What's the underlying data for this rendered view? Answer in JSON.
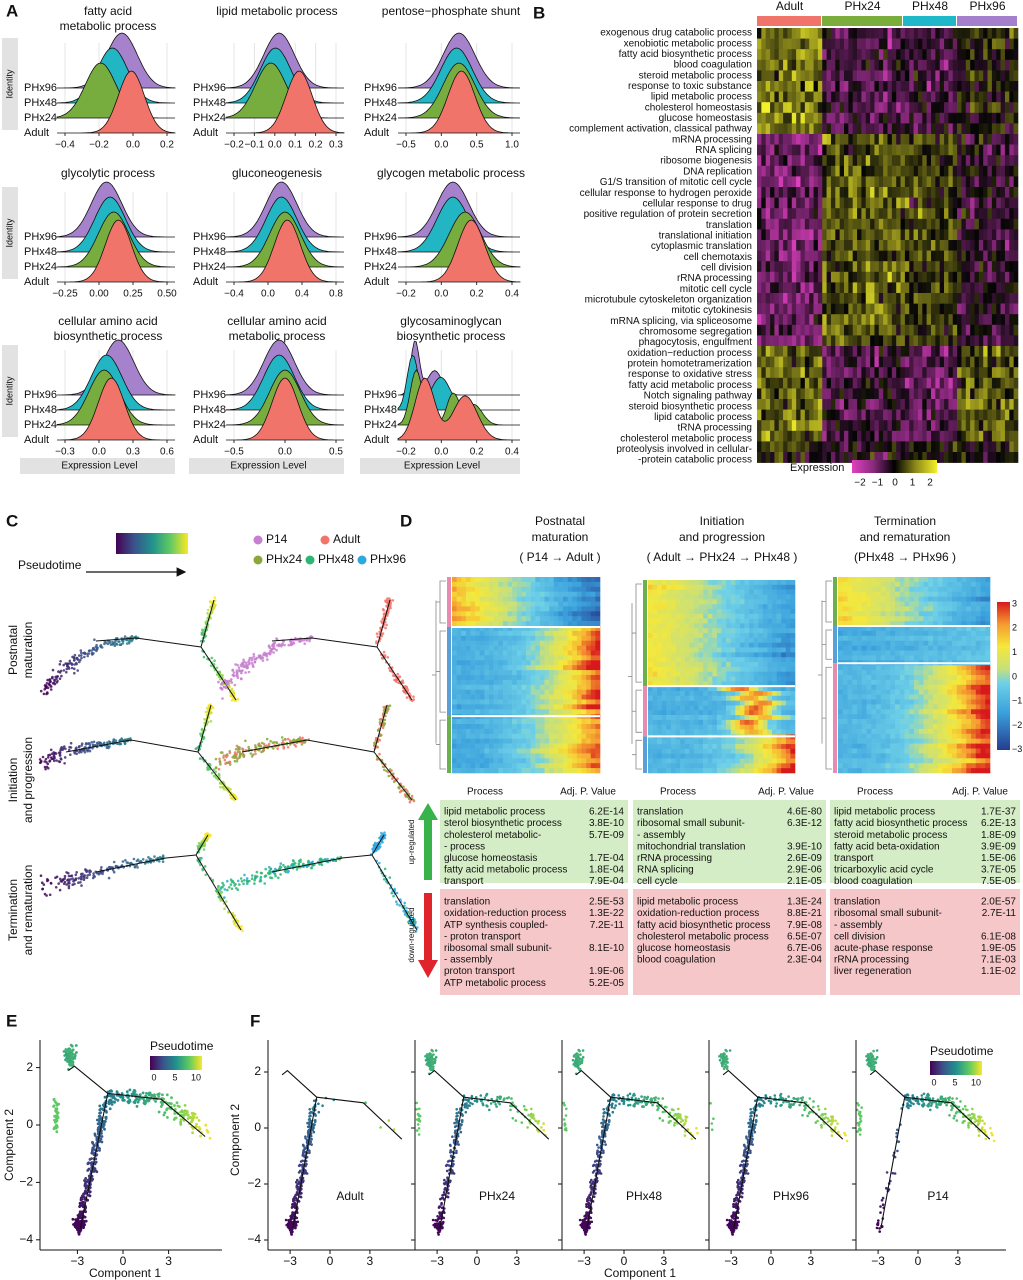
{
  "A": {
    "label": "A",
    "ylabel": "Identity",
    "groups": [
      "PHx96",
      "PHx48",
      "PHx24",
      "Adult"
    ],
    "xlabel": "Expression Level",
    "plots": [
      {
        "title": [
          "fatty acid",
          "metabolic process"
        ],
        "ticks": [
          "−0.4",
          "−0.2",
          "0.0",
          "0.2"
        ]
      },
      {
        "title": [
          "lipid metabolic process"
        ],
        "ticks": [
          "−0.2",
          "−0.1",
          "0.0",
          "0.1",
          "0.2",
          "0.3"
        ]
      },
      {
        "title": [
          "pentose−phosphate shunt"
        ],
        "ticks": [
          "−0.5",
          "0.0",
          "0.5",
          "1.0"
        ]
      },
      {
        "title": [
          "glycolytic process"
        ],
        "ticks": [
          "−0.25",
          "0.00",
          "0.25",
          "0.50"
        ]
      },
      {
        "title": [
          "gluconeogenesis"
        ],
        "ticks": [
          "−0.4",
          "0.0",
          "0.4",
          "0.8"
        ]
      },
      {
        "title": [
          "glycogen metabolic process"
        ],
        "ticks": [
          "−0.2",
          "0.0",
          "0.2",
          "0.4"
        ]
      },
      {
        "title": [
          "cellular amino acid",
          "biosynthetic process"
        ],
        "ticks": [
          "−0.3",
          "0.0",
          "0.3",
          "0.6"
        ]
      },
      {
        "title": [
          "cellular amino acid",
          "metabolic process"
        ],
        "ticks": [
          "−0.5",
          "0.0",
          "0.5"
        ]
      },
      {
        "title": [
          "glycosaminoglycan",
          "biosynthetic process"
        ],
        "ticks": [
          "−0.2",
          "0.0",
          "0.2",
          "0.4"
        ]
      }
    ]
  },
  "B": {
    "label": "B",
    "groups": [
      "Adult",
      "PHx24",
      "PHx48",
      "PHx96"
    ],
    "processes": [
      "exogenous drug catabolic process",
      "xenobiotic metabolic process",
      "fatty acid biosynthetic process",
      "blood coagulation",
      "steroid metabolic process",
      "response to toxic substance",
      "lipid metabolic process",
      "cholesterol homeostasis",
      "glucose homeostasis",
      "complement activation, classical pathway",
      "mRNA processing",
      "RNA splicing",
      "ribosome biogenesis",
      "DNA replication",
      "G1/S transition of mitotic cell cycle",
      "cellular response to hydrogen peroxide",
      "cellular response to drug",
      "positive regulation of protein secretion",
      "translation",
      "translational initiation",
      "cytoplasmic translation",
      "cell chemotaxis",
      "cell division",
      "rRNA processing",
      "mitotic cell cycle",
      "microtubule cytoskeleton organization",
      "mitotic cytokinesis",
      "mRNA splicing, via spliceosome",
      "chromosome segregation",
      "phagocytosis, engulfment",
      "oxidation−reduction process",
      "protein homotetramerization",
      "response to oxidative stress",
      "fatty acid metabolic process",
      "Notch signaling pathway",
      "steroid biosynthetic process",
      "lipid catabolic process",
      "tRNA processing",
      "cholesterol metabolic process",
      "proteolysis involved in cellular-",
      "-protein catabolic process"
    ],
    "legend_title": "Expression",
    "legend_ticks": [
      "−2",
      "−1",
      "0",
      "1",
      "2"
    ]
  },
  "C": {
    "label": "C",
    "pseudotime": "Pseudotime",
    "legend": [
      "P14",
      "Adult",
      "PHx24",
      "PHx48",
      "PHx96"
    ],
    "rows": [
      [
        "Postnatal",
        "maturation"
      ],
      [
        "Initiation",
        "and progression"
      ],
      [
        "Termination",
        "and rematuration"
      ]
    ]
  },
  "D": {
    "label": "D",
    "process_header": "Process",
    "p_header": "Adj. P. Value",
    "up_label": "up-regulated",
    "down_label": "down-regulated",
    "colorbar_ticks": [
      "3",
      "2",
      "1",
      "0",
      "−1",
      "−2",
      "−3"
    ],
    "columns": [
      {
        "title": [
          "Postnatal",
          "maturation"
        ],
        "subtitle": "( P14 → Adult )",
        "up": [
          [
            "lipid metabolic process",
            "6.2E-14"
          ],
          [
            "sterol biosynthetic process",
            "3.8E-10"
          ],
          [
            "cholesterol metabolic-",
            "5.7E-09"
          ],
          [
            "- process"
          ],
          [
            "glucose homeostasis",
            "1.7E-04"
          ],
          [
            "fatty acid metabolic process",
            "1.8E-04"
          ],
          [
            "transport",
            "7.9E-04"
          ]
        ],
        "down": [
          [
            "translation",
            "2.5E-53"
          ],
          [
            "oxidation-reduction process",
            "1.3E-22"
          ],
          [
            "ATP synthesis coupled-",
            "7.2E-11"
          ],
          [
            "- proton transport"
          ],
          [
            "ribosomal small subunit-",
            "8.1E-10"
          ],
          [
            "- assembly"
          ],
          [
            "proton transport",
            "1.9E-06"
          ],
          [
            "ATP metabolic process",
            "5.2E-05"
          ]
        ]
      },
      {
        "title": [
          "Initiation",
          "and progression"
        ],
        "subtitle": "( Adult → PHx24 → PHx48 )",
        "up": [
          [
            "translation",
            "4.6E-80"
          ],
          [
            "ribosomal small subunit-",
            "6.3E-12"
          ],
          [
            "- assembly"
          ],
          [
            "mitochondrial translation",
            "3.9E-10"
          ],
          [
            "rRNA processing",
            "2.6E-09"
          ],
          [
            "RNA splicing",
            "2.9E-06"
          ],
          [
            "cell cycle",
            "2.1E-05"
          ]
        ],
        "down": [
          [
            "lipid metabolic process",
            "1.3E-24"
          ],
          [
            "oxidation-reduction process",
            "8.8E-21"
          ],
          [
            "fatty acid biosynthetic process",
            "7.9E-08"
          ],
          [
            "cholesterol metabolic process",
            "6.5E-07"
          ],
          [
            "glucose homeostasis",
            "6.7E-06"
          ],
          [
            "blood coagulation",
            "2.3E-04"
          ]
        ]
      },
      {
        "title": [
          "Termination",
          "and rematuration"
        ],
        "subtitle": "(PHx48 → PHx96 )",
        "up": [
          [
            "lipid metabolic process",
            "1.7E-37"
          ],
          [
            "fatty acid biosynthetic process",
            "6.2E-13"
          ],
          [
            "steroid metabolic process",
            "1.8E-09"
          ],
          [
            "fatty acid beta-oxidation",
            "3.9E-09"
          ],
          [
            "transport",
            "1.5E-06"
          ],
          [
            "tricarboxylic acid cycle",
            "3.7E-05"
          ],
          [
            "blood coagulation",
            "7.5E-05"
          ]
        ],
        "down": [
          [
            "translation",
            "2.0E-57"
          ],
          [
            "ribosomal small subunit-",
            "2.7E-11"
          ],
          [
            "- assembly"
          ],
          [
            "cell division",
            "6.1E-08"
          ],
          [
            "acute-phase response",
            "1.9E-05"
          ],
          [
            "rRNA processing",
            "7.1E-03"
          ],
          [
            "liver regeneration",
            "1.1E-02"
          ]
        ]
      }
    ]
  },
  "E": {
    "label": "E",
    "legend_title": "Pseudotime",
    "legend_ticks": [
      "0",
      "5",
      "10"
    ],
    "xticks": [
      "−3",
      "0",
      "3"
    ],
    "yticks": [
      "2",
      "0",
      "−2",
      "−4"
    ],
    "xlabel": "Component 1",
    "ylabel": "Component 2"
  },
  "F": {
    "label": "F",
    "plots": [
      "Adult",
      "PHx24",
      "PHx48",
      "PHx96",
      "P14"
    ],
    "legend_title": "Pseudotime",
    "legend_ticks": [
      "0",
      "5",
      "10"
    ],
    "xticks": [
      "−3",
      "0",
      "3"
    ],
    "yticks": [
      "2",
      "0",
      "−2",
      "−4"
    ],
    "xlabel": "Component 1",
    "ylabel": "Component 2"
  }
}
